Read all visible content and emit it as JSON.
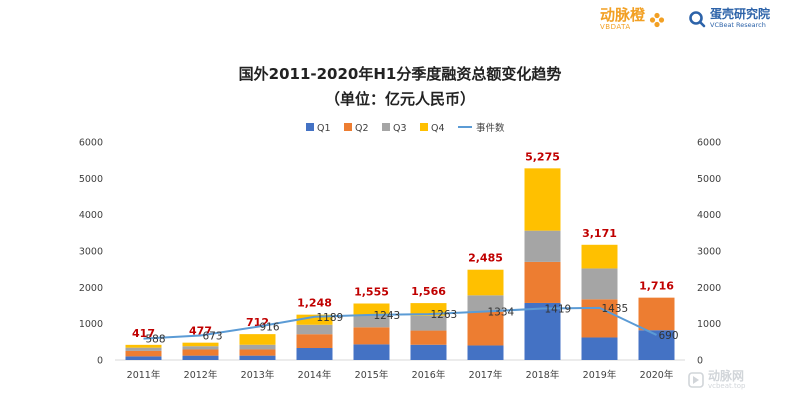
{
  "brand": {
    "left_logo_name": "动脉橙",
    "left_logo_sub": "VBDATA",
    "right_logo_name": "蛋壳研究院",
    "right_logo_sub": "VCBeat Research",
    "watermark_name": "动脉网",
    "watermark_sub": "vcbeat.top"
  },
  "colors": {
    "q1": "#4472c4",
    "q2": "#ed7d31",
    "q3": "#a5a5a5",
    "q4": "#ffc000",
    "line": "#5b9bd5",
    "total_label": "#c00000",
    "text": "#222222",
    "axis_text": "#404040",
    "grid": "#d9d9d9"
  },
  "chart_data": {
    "type": "bar",
    "stacked": true,
    "title": "国外2011-2020年H1分季度融资总额变化趋势",
    "subtitle": "（单位：亿元人民币）",
    "categories": [
      "2011年",
      "2012年",
      "2013年",
      "2014年",
      "2015年",
      "2016年",
      "2017年",
      "2018年",
      "2019年",
      "2020年"
    ],
    "series": [
      {
        "name": "Q1",
        "color_key": "q1",
        "values": [
          100,
          120,
          120,
          330,
          430,
          420,
          400,
          1570,
          620,
          820
        ]
      },
      {
        "name": "Q2",
        "color_key": "q2",
        "values": [
          150,
          170,
          170,
          380,
          470,
          390,
          930,
          1130,
          1050,
          896
        ]
      },
      {
        "name": "Q3",
        "color_key": "q3",
        "values": [
          90,
          90,
          130,
          260,
          330,
          410,
          450,
          860,
          850,
          0
        ]
      },
      {
        "name": "Q4",
        "color_key": "q4",
        "values": [
          77,
          97,
          292,
          278,
          325,
          346,
          705,
          1715,
          651,
          0
        ]
      }
    ],
    "totals": [
      "417",
      "477",
      "712",
      "1,248",
      "1,555",
      "1,566",
      "2,485",
      "5,275",
      "3,171",
      "1,716"
    ],
    "line": {
      "name": "事件数",
      "axis": "right",
      "values": [
        588,
        673,
        916,
        1189,
        1243,
        1263,
        1334,
        1419,
        1435,
        690
      ]
    },
    "y_left": {
      "min": 0,
      "max": 6000,
      "ticks": [
        0,
        1000,
        2000,
        3000,
        4000,
        5000,
        6000
      ]
    },
    "y_right": {
      "min": 0,
      "max": 6000,
      "ticks": [
        0,
        1000,
        2000,
        3000,
        4000,
        5000,
        6000
      ]
    },
    "legend_position": "top",
    "grid": false
  }
}
